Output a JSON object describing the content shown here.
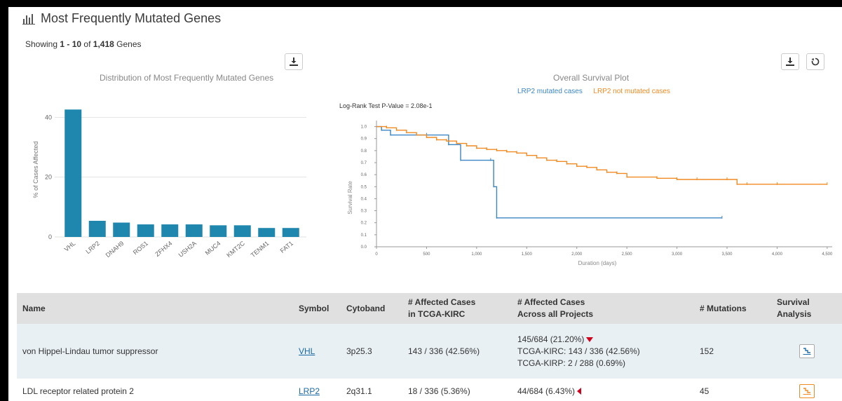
{
  "header": {
    "title": "Most Frequently Mutated Genes",
    "icon": "bar-chart-icon"
  },
  "showing": {
    "prefix": "Showing",
    "range": "1 - 10",
    "of": "of",
    "total": "1,418",
    "unit": "Genes"
  },
  "colors": {
    "bar": "#1f86ad",
    "mutated": "#3b86c4",
    "not_mutated": "#f28a22",
    "header_bg": "#e0e0e0",
    "row_highlight": "#e8f0f4",
    "link": "#1b6aa5",
    "arrow": "#d0021b"
  },
  "chart_data": [
    {
      "type": "bar",
      "title": "Distribution of Most Frequently Mutated Genes",
      "xlabel": "",
      "ylabel": "% of Cases Affected",
      "categories": [
        "VHL",
        "LRP2",
        "DNAH9",
        "ROS1",
        "ZFHX4",
        "USH2A",
        "MUC4",
        "KMT2C",
        "TENM1",
        "FAT1"
      ],
      "values": [
        42.6,
        5.4,
        4.8,
        4.2,
        4.2,
        4.2,
        3.9,
        3.9,
        3.0,
        3.0
      ],
      "yticks": [
        0,
        20,
        40
      ],
      "ylim": [
        0,
        45
      ],
      "grid": true
    },
    {
      "type": "line",
      "title": "Overall Survival Plot",
      "xlabel": "Duration (days)",
      "ylabel": "Survival Rate",
      "annotation": "Log-Rank Test P-Value = 2.08e-1",
      "legend_position": "top",
      "xticks": [
        0,
        500,
        1000,
        1500,
        2000,
        2500,
        3000,
        3500,
        4000,
        4500
      ],
      "xticklabels": [
        "0",
        "500",
        "1,000",
        "1,500",
        "2,000",
        "2,500",
        "3,000",
        "3,500",
        "4,000",
        "4,500"
      ],
      "yticks": [
        0.0,
        0.1,
        0.2,
        0.3,
        0.4,
        0.5,
        0.6,
        0.7,
        0.8,
        0.9,
        1.0
      ],
      "xlim": [
        0,
        4550
      ],
      "ylim": [
        0,
        1.05
      ],
      "series": [
        {
          "name": "LRP2 mutated cases",
          "x": [
            0,
            50,
            140,
            500,
            720,
            840,
            1140,
            1170,
            1200,
            3450
          ],
          "y": [
            1.0,
            0.97,
            0.93,
            0.93,
            0.85,
            0.72,
            0.72,
            0.5,
            0.24,
            0.24
          ]
        },
        {
          "name": "LRP2 not mutated cases",
          "x": [
            0,
            100,
            200,
            300,
            400,
            500,
            600,
            700,
            800,
            900,
            1000,
            1100,
            1200,
            1300,
            1400,
            1500,
            1600,
            1700,
            1800,
            1900,
            2000,
            2100,
            2200,
            2300,
            2400,
            2500,
            2800,
            3000,
            3200,
            3500,
            3600,
            3700,
            4000,
            4500
          ],
          "y": [
            1.0,
            0.99,
            0.97,
            0.95,
            0.93,
            0.91,
            0.89,
            0.88,
            0.86,
            0.84,
            0.82,
            0.81,
            0.8,
            0.79,
            0.78,
            0.76,
            0.74,
            0.72,
            0.71,
            0.69,
            0.67,
            0.66,
            0.64,
            0.62,
            0.61,
            0.58,
            0.57,
            0.56,
            0.56,
            0.56,
            0.52,
            0.52,
            0.52,
            0.52
          ]
        }
      ]
    }
  ],
  "table": {
    "headers": {
      "name": "Name",
      "symbol": "Symbol",
      "cytoband": "Cytoband",
      "affected_tcga_1": "# Affected Cases",
      "affected_tcga_2": "in TCGA-KIRC",
      "affected_all_1": "# Affected Cases",
      "affected_all_2": "Across all Projects",
      "mutations": "# Mutations",
      "survival": "Survival Analysis"
    },
    "rows": [
      {
        "name": "von Hippel-Lindau tumor suppressor",
        "symbol": "VHL",
        "cytoband": "3p25.3",
        "affected_tcga": "143 / 336 (42.56%)",
        "affected_all": "145/684 (21.20%)",
        "affected_all_detail_1": "TCGA-KIRC: 143 / 336 (42.56%)",
        "affected_all_detail_2": "TCGA-KIRP: 2 / 288 (0.69%)",
        "mutations": "152"
      },
      {
        "name": "LDL receptor related protein 2",
        "symbol": "LRP2",
        "cytoband": "2q31.1",
        "affected_tcga": "18 / 336 (5.36%)",
        "affected_all": "44/684 (6.43%)",
        "mutations": "45"
      }
    ]
  }
}
